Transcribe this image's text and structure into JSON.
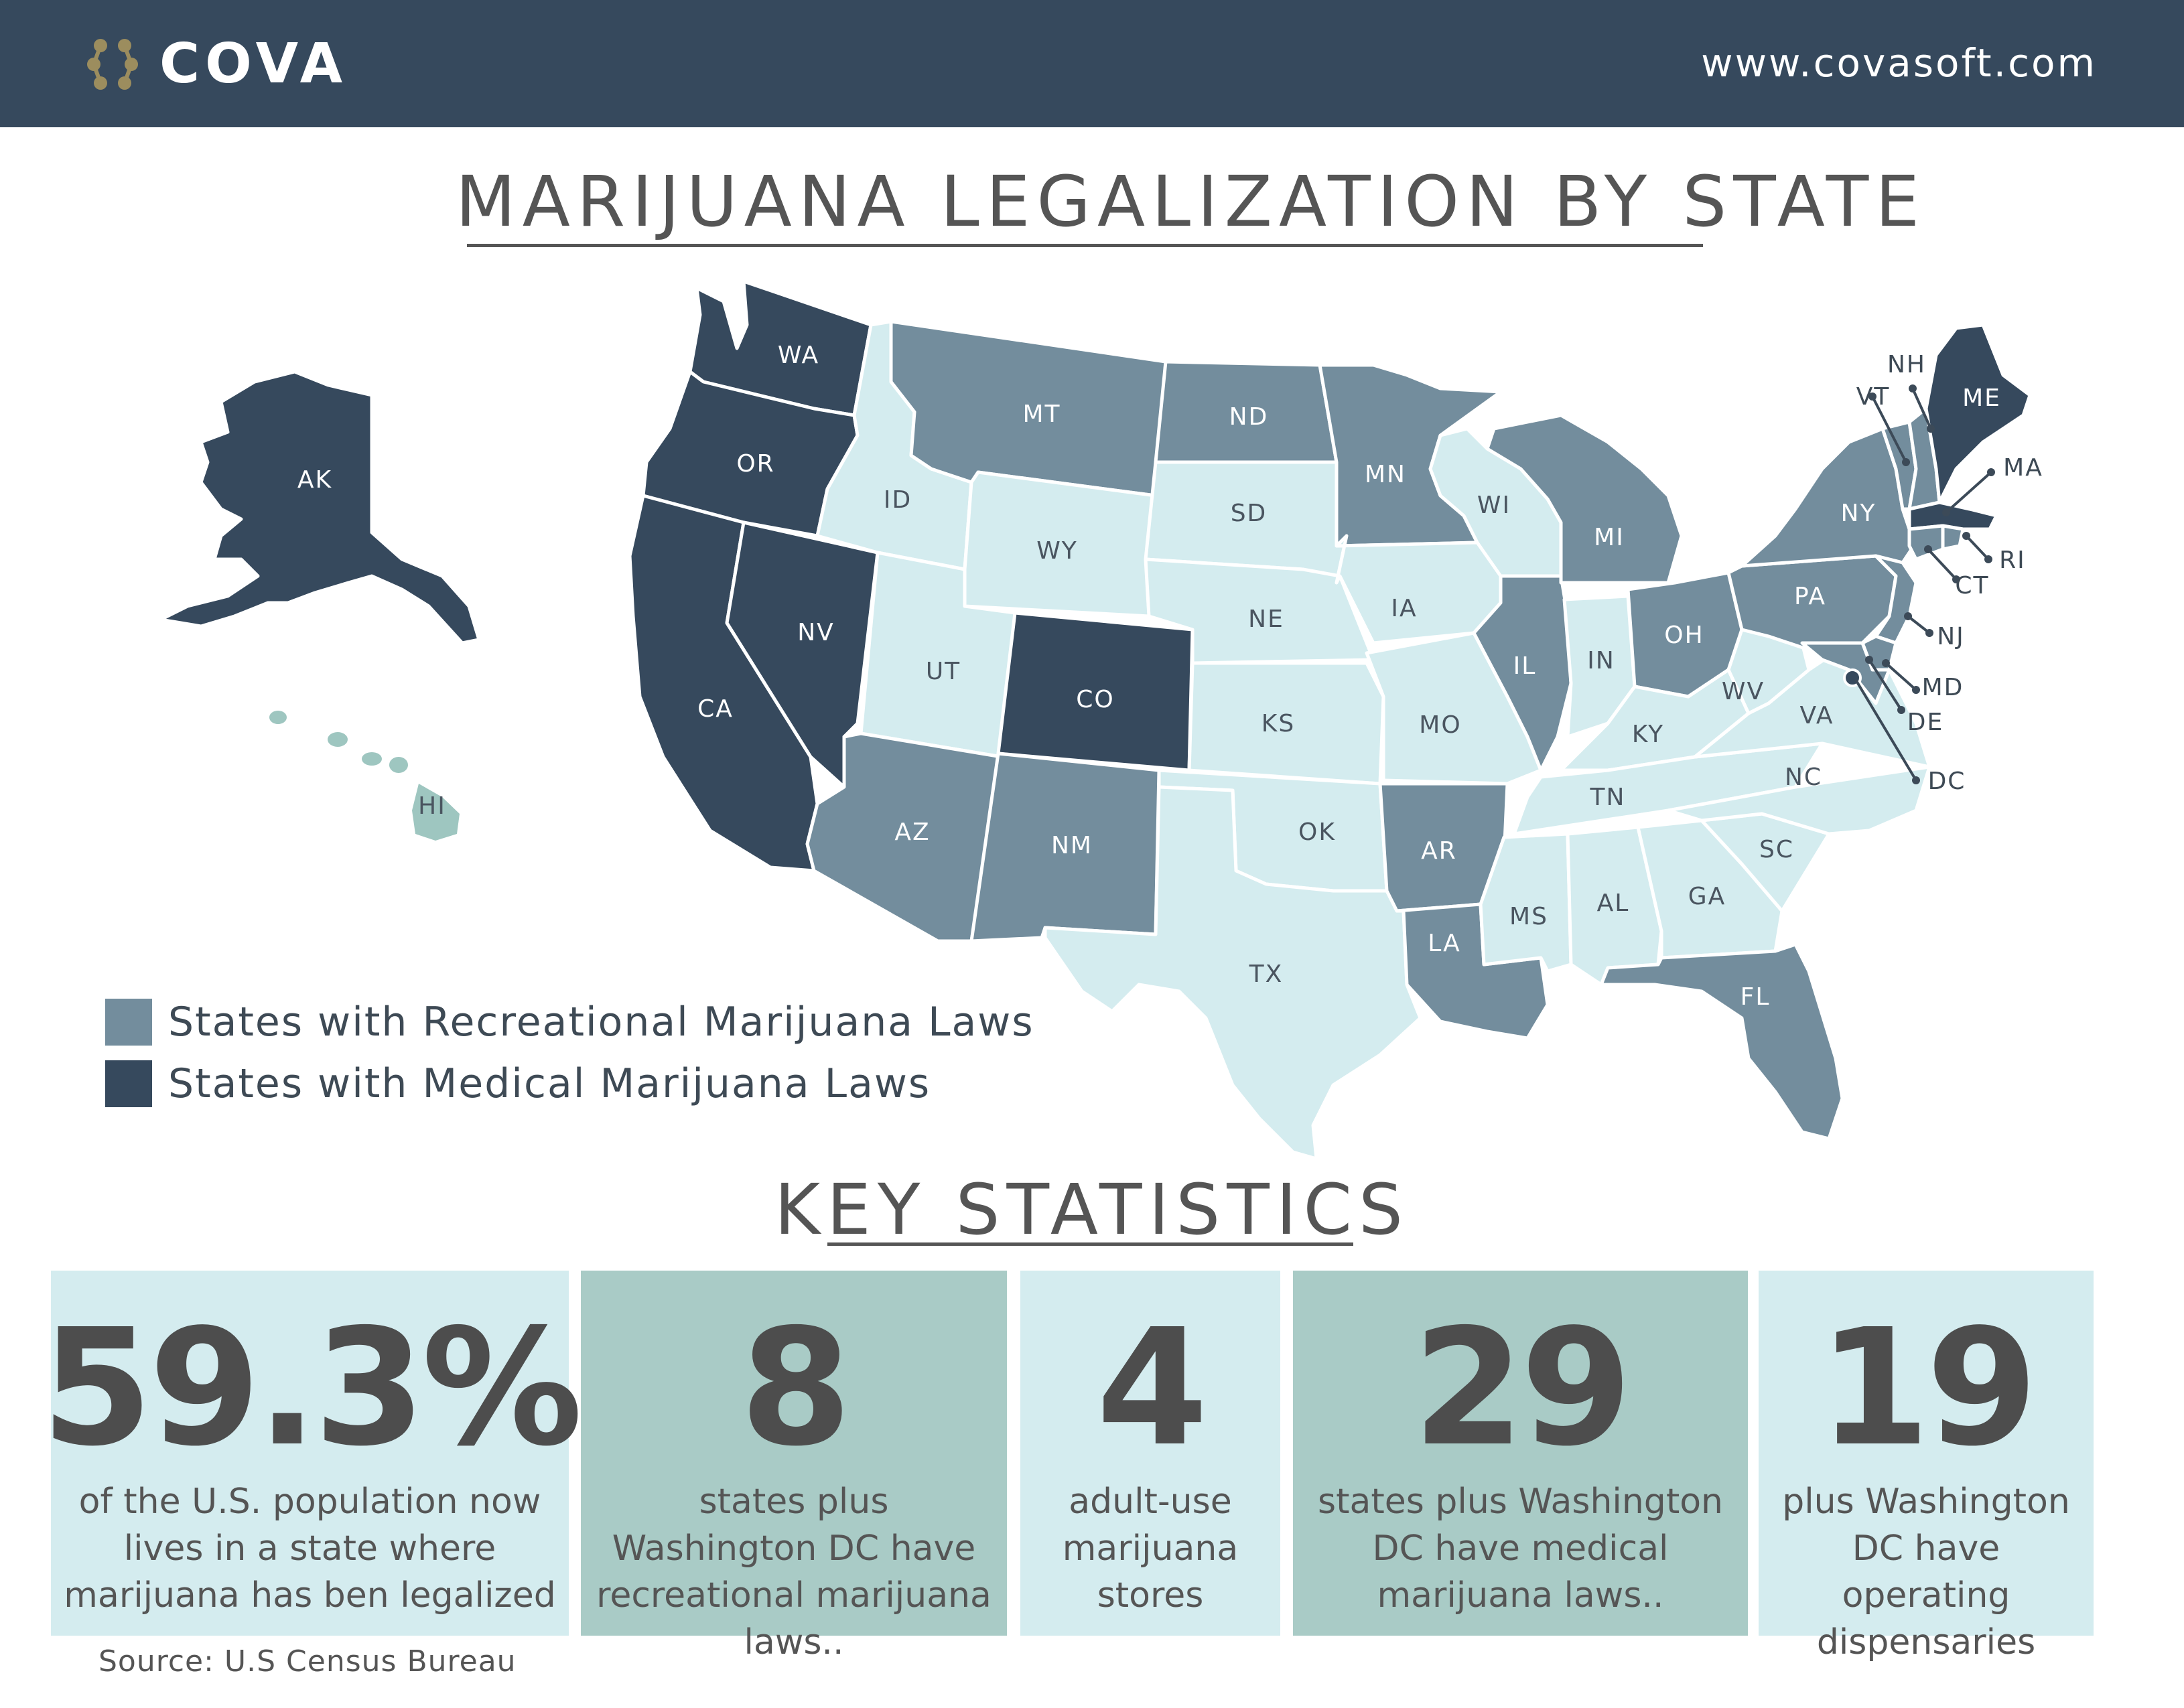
{
  "header": {
    "brand": "COVA",
    "website": "www.covasoft.com"
  },
  "title": "MARIJUANA LEGALIZATION BY STATE",
  "colors": {
    "recreational": "#738d9d",
    "medical": "#36495d",
    "none": "#d4ecef",
    "hawaii": "#9ec6c0",
    "header_bg": "#36495d",
    "stat_light": "#d4ecef",
    "stat_teal": "#a9cbc6"
  },
  "legend": [
    {
      "label": "States with Recreational Marijuana Laws",
      "color": "#738d9d"
    },
    {
      "label": "States with Medical Marijuana Laws",
      "color": "#36495d"
    }
  ],
  "states": {
    "AK": {
      "label": "AK",
      "status": "medical"
    },
    "HI": {
      "label": "HI",
      "status": "hawaii"
    },
    "WA": {
      "label": "WA",
      "status": "medical"
    },
    "OR": {
      "label": "OR",
      "status": "medical"
    },
    "CA": {
      "label": "CA",
      "status": "medical"
    },
    "NV": {
      "label": "NV",
      "status": "medical"
    },
    "ID": {
      "label": "ID",
      "status": "none"
    },
    "MT": {
      "label": "MT",
      "status": "recreational"
    },
    "WY": {
      "label": "WY",
      "status": "none"
    },
    "UT": {
      "label": "UT",
      "status": "none"
    },
    "AZ": {
      "label": "AZ",
      "status": "recreational"
    },
    "CO": {
      "label": "CO",
      "status": "medical"
    },
    "NM": {
      "label": "NM",
      "status": "recreational"
    },
    "ND": {
      "label": "ND",
      "status": "recreational"
    },
    "SD": {
      "label": "SD",
      "status": "none"
    },
    "NE": {
      "label": "NE",
      "status": "none"
    },
    "KS": {
      "label": "KS",
      "status": "none"
    },
    "OK": {
      "label": "OK",
      "status": "none"
    },
    "TX": {
      "label": "TX",
      "status": "none"
    },
    "MN": {
      "label": "MN",
      "status": "recreational"
    },
    "IA": {
      "label": "IA",
      "status": "none"
    },
    "MO": {
      "label": "MO",
      "status": "none"
    },
    "AR": {
      "label": "AR",
      "status": "recreational"
    },
    "LA": {
      "label": "LA",
      "status": "recreational"
    },
    "WI": {
      "label": "WI",
      "status": "none"
    },
    "IL": {
      "label": "IL",
      "status": "recreational"
    },
    "MI": {
      "label": "MI",
      "status": "recreational"
    },
    "IN": {
      "label": "IN",
      "status": "none"
    },
    "OH": {
      "label": "OH",
      "status": "recreational"
    },
    "KY": {
      "label": "KY",
      "status": "none"
    },
    "TN": {
      "label": "TN",
      "status": "none"
    },
    "MS": {
      "label": "MS",
      "status": "none"
    },
    "AL": {
      "label": "AL",
      "status": "none"
    },
    "GA": {
      "label": "GA",
      "status": "none"
    },
    "FL": {
      "label": "FL",
      "status": "recreational"
    },
    "SC": {
      "label": "SC",
      "status": "none"
    },
    "NC": {
      "label": "NC",
      "status": "none"
    },
    "VA": {
      "label": "VA",
      "status": "none"
    },
    "WV": {
      "label": "WV",
      "status": "none"
    },
    "PA": {
      "label": "PA",
      "status": "recreational"
    },
    "NY": {
      "label": "NY",
      "status": "recreational"
    },
    "VT": {
      "label": "VT",
      "status": "recreational"
    },
    "NH": {
      "label": "NH",
      "status": "recreational"
    },
    "ME": {
      "label": "ME",
      "status": "medical"
    },
    "MA": {
      "label": "MA",
      "status": "medical"
    },
    "RI": {
      "label": "RI",
      "status": "recreational"
    },
    "CT": {
      "label": "CT",
      "status": "recreational"
    },
    "NJ": {
      "label": "NJ",
      "status": "recreational"
    },
    "DE": {
      "label": "DE",
      "status": "recreational"
    },
    "MD": {
      "label": "MD",
      "status": "recreational"
    },
    "DC": {
      "label": "DC",
      "status": "medical"
    }
  },
  "key_statistics": {
    "heading": "KEY STATISTICS",
    "items": [
      {
        "value": "59.3%",
        "description": "of the U.S. population now lives in a state where marijuana has ben legalized",
        "color": "#d4ecef"
      },
      {
        "value": "8",
        "description": "states plus Washington DC have recreational marijuana laws..",
        "color": "#a9cbc6"
      },
      {
        "value": "4",
        "description": "adult-use marijuana stores",
        "color": "#d4ecef"
      },
      {
        "value": "29",
        "description": "states plus Washington DC have medical marijuana laws..",
        "color": "#a9cbc6"
      },
      {
        "value": "19",
        "description": "plus Washington DC have operating dispensaries",
        "color": "#d4ecef"
      }
    ],
    "source": "Source: U.S Census Bureau"
  }
}
